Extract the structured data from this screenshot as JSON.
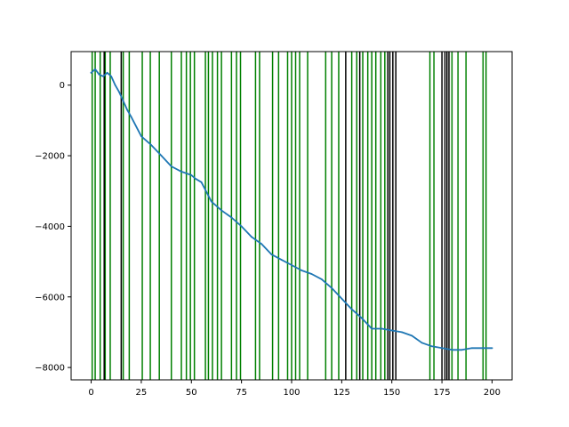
{
  "chart_data": {
    "type": "line",
    "title": "",
    "xlabel": "",
    "ylabel": "",
    "xlim": [
      -10,
      210
    ],
    "ylim": [
      -8350,
      950
    ],
    "xticks": [
      0,
      25,
      50,
      75,
      100,
      125,
      150,
      175,
      200
    ],
    "xtick_labels": [
      "0",
      "25",
      "50",
      "75",
      "100",
      "125",
      "150",
      "175",
      "200"
    ],
    "yticks": [
      0,
      -2000,
      -4000,
      -6000,
      -8000
    ],
    "ytick_labels": [
      "0",
      "−2000",
      "−4000",
      "−6000",
      "−8000"
    ],
    "grid": false,
    "legend": "none",
    "series": [
      {
        "color": "#1f77b4",
        "x": [
          0,
          2,
          4,
          6,
          8,
          10,
          12,
          14,
          16,
          18,
          20,
          25,
          30,
          35,
          40,
          45,
          50,
          52,
          55,
          60,
          65,
          70,
          75,
          80,
          85,
          90,
          95,
          100,
          105,
          110,
          115,
          120,
          125,
          130,
          135,
          140,
          145,
          150,
          155,
          160,
          165,
          170,
          175,
          180,
          185,
          190,
          195,
          200
        ],
        "y": [
          350,
          450,
          300,
          250,
          350,
          250,
          0,
          -200,
          -450,
          -700,
          -900,
          -1450,
          -1700,
          -2000,
          -2300,
          -2450,
          -2550,
          -2650,
          -2750,
          -3300,
          -3550,
          -3750,
          -4000,
          -4300,
          -4500,
          -4800,
          -4950,
          -5100,
          -5250,
          -5350,
          -5500,
          -5750,
          -6050,
          -6350,
          -6600,
          -6900,
          -6900,
          -6950,
          -7000,
          -7100,
          -7300,
          -7400,
          -7450,
          -7500,
          -7500,
          -7450,
          -7450,
          -7450
        ]
      }
    ],
    "vlines": [
      {
        "color": "#008000",
        "x": [
          0.5,
          2,
          4.5,
          7,
          9.5,
          16,
          19,
          25.5,
          29.5,
          34,
          40,
          45,
          47.5,
          49.5,
          51.5,
          57,
          58.5,
          60.5,
          63,
          65,
          70,
          72.5,
          74.5,
          82,
          84,
          90.5,
          93.5,
          98,
          100,
          102,
          104,
          108,
          117,
          120,
          123.5,
          130,
          132.5,
          135.5,
          138,
          140,
          142,
          144.5,
          146.5,
          169,
          171,
          180,
          183,
          187,
          195.5,
          197
        ]
      },
      {
        "color": "#000000",
        "x": [
          6.5,
          15,
          127,
          134,
          148,
          149,
          150.5,
          152,
          175,
          176.5,
          177.5,
          178.5
        ]
      }
    ]
  }
}
